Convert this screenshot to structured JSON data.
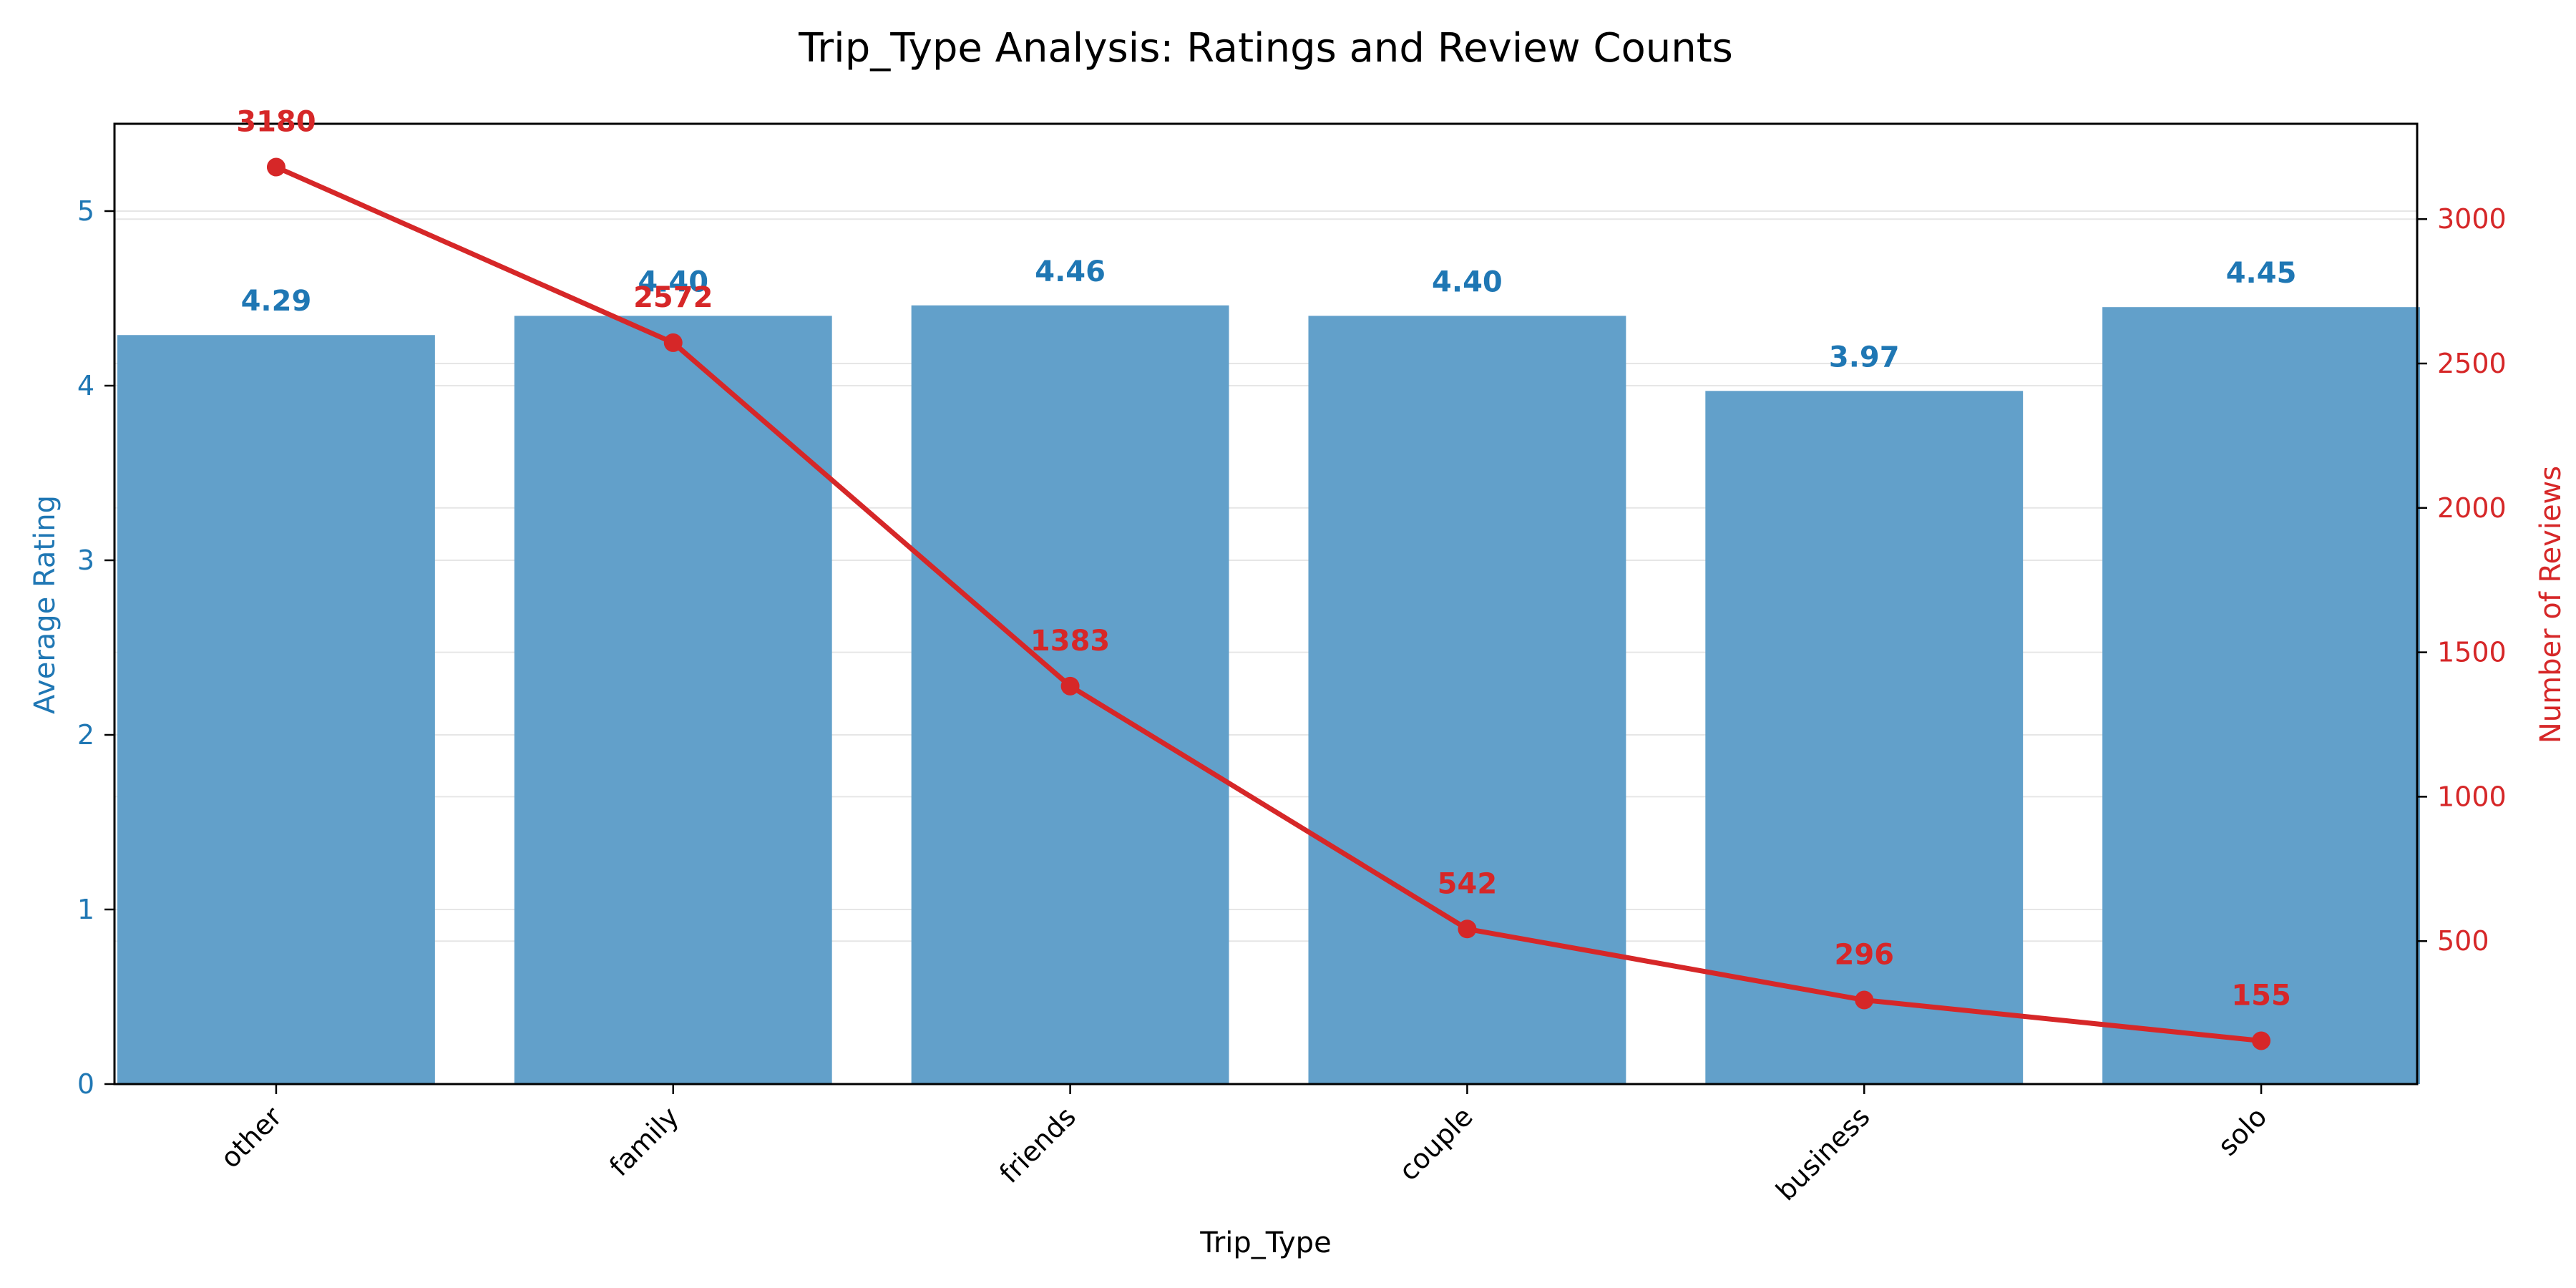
{
  "chart_data": {
    "type": "bar+line",
    "title": "Trip_Type Analysis: Ratings and Review Counts",
    "xlabel": "Trip_Type",
    "ylabel_left": "Average Rating",
    "ylabel_right": "Number of Reviews",
    "categories": [
      "other",
      "family",
      "friends",
      "couple",
      "business",
      "solo"
    ],
    "series": [
      {
        "name": "Average Rating",
        "kind": "bar",
        "axis": "left",
        "values": [
          4.29,
          4.4,
          4.46,
          4.4,
          3.97,
          4.45
        ],
        "labels": [
          "4.29",
          "4.40",
          "4.46",
          "4.40",
          "3.97",
          "4.45"
        ],
        "color": "#1f77b4",
        "bar_color": "#62a0ca"
      },
      {
        "name": "Number of Reviews",
        "kind": "line",
        "axis": "right",
        "values": [
          3180,
          2572,
          1383,
          542,
          296,
          155
        ],
        "labels": [
          "3180",
          "2572",
          "1383",
          "542",
          "296",
          "155"
        ],
        "color": "#d62728"
      }
    ],
    "ylim_left": [
      0,
      5.5
    ],
    "yticks_left": [
      0,
      1,
      2,
      3,
      4,
      5
    ],
    "ylim_right": [
      5,
      3330
    ],
    "yticks_right": [
      500,
      1000,
      1500,
      2000,
      2500,
      3000
    ],
    "grid": true,
    "legend": "none"
  }
}
